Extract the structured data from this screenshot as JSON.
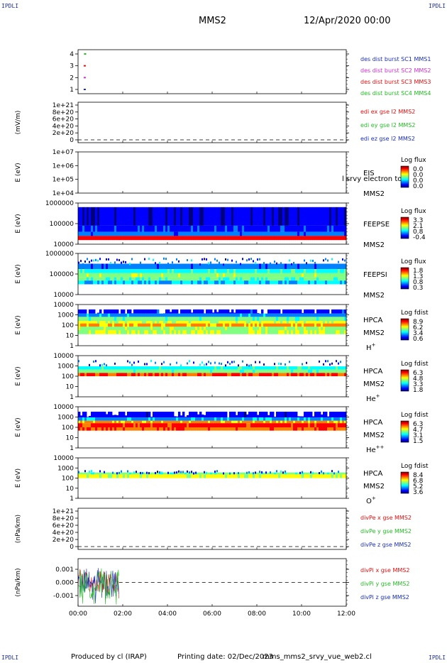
{
  "header": {
    "mission": "MMS2",
    "datetime": "12/Apr/2020 00:00",
    "corner_label": "IPDLI"
  },
  "footer": {
    "produced_by": "Produced by cl (IRAP)",
    "printing_date": "Printing date: 02/Dec/2023",
    "filename": "mms_mms2_srvy_vue_web2.cl"
  },
  "chart_data": {
    "type": "stacked-panels",
    "x_axis": {
      "range": [
        "00:00",
        "12:00"
      ],
      "tick_labels": [
        "00:00",
        "02:00",
        "04:00",
        "06:00",
        "08:00",
        "10:00",
        "12:00"
      ]
    },
    "panels": [
      {
        "id": "burst",
        "type": "scatter",
        "ylabel": "",
        "ytick_labels": [
          "4",
          "3",
          "2",
          "1"
        ],
        "legend": [
          {
            "name": "des dist burst SC1 MMS1",
            "color": "#1a2fb0"
          },
          {
            "name": "des dist burst SC2 MMS2",
            "color": "#cc33cc"
          },
          {
            "name": "des dist burst SC3 MMS3",
            "color": "#dd1111"
          },
          {
            "name": "des dist burst SC4 MMS4",
            "color": "#22bb22"
          }
        ],
        "points": [
          {
            "sc": 4,
            "time": "00:18"
          },
          {
            "sc": 3,
            "time": "00:17"
          },
          {
            "sc": 2,
            "time": "00:17"
          },
          {
            "sc": 1,
            "time": "00:17"
          }
        ]
      },
      {
        "id": "edi",
        "type": "line",
        "ylabel": "(mV/m)",
        "ytick_labels": [
          "1e+21",
          "8e+20",
          "6e+20",
          "4e+20",
          "2e+20",
          "0"
        ],
        "legend": [
          {
            "name": "edi ex gse l2 MMS2",
            "color": "#dd1111"
          },
          {
            "name": "edi ey gse l2 MMS2",
            "color": "#22bb22"
          },
          {
            "name": "edi ez gse l2 MMS2",
            "color": "#1a2fb0"
          }
        ]
      },
      {
        "id": "eis",
        "type": "heatmap",
        "ylabel": "E (eV)",
        "ytick_labels": [
          "1e+07",
          "1e+06",
          "1e+05",
          "1e+04"
        ],
        "right_labels": [
          "EIS",
          "MMS2"
        ],
        "overlay_text": "l srvy electron to",
        "colorbar": {
          "title": "Log flux",
          "ticks": [
            "0.0",
            "0.0",
            "0.0",
            "0.0"
          ]
        }
      },
      {
        "id": "feepse",
        "type": "heatmap",
        "ylabel": "E (eV)",
        "ytick_labels": [
          "1000000",
          "100000",
          "10000"
        ],
        "right_labels": [
          "FEEPSE",
          "MMS2"
        ],
        "colorbar": {
          "title": "Log flux",
          "ticks": [
            "3.3",
            "2.1",
            "0.8",
            "-0.4"
          ]
        }
      },
      {
        "id": "feepsi",
        "type": "heatmap",
        "ylabel": "E (eV)",
        "ytick_labels": [
          "1000000",
          "100000",
          "10000"
        ],
        "right_labels": [
          "FEEPSI",
          "MMS2"
        ],
        "colorbar": {
          "title": "Log flux",
          "ticks": [
            "1.8",
            "1.3",
            "0.8",
            "0.3"
          ]
        }
      },
      {
        "id": "hpca_h",
        "type": "heatmap",
        "ylabel": "E (eV)",
        "ytick_labels": [
          "10000",
          "1000",
          "100",
          "10",
          "1"
        ],
        "right_labels": [
          "HPCA",
          "MMS2"
        ],
        "species": "H",
        "species_charge": "+",
        "colorbar": {
          "title": "Log fdist",
          "ticks": [
            "8.9",
            "6.2",
            "3.4",
            "0.6"
          ]
        }
      },
      {
        "id": "hpca_he",
        "type": "heatmap",
        "ylabel": "E (eV)",
        "ytick_labels": [
          "10000",
          "1000",
          "100",
          "10",
          "1"
        ],
        "right_labels": [
          "HPCA",
          "MMS2"
        ],
        "species": "He",
        "species_charge": "+",
        "colorbar": {
          "title": "Log fdist",
          "ticks": [
            "6.3",
            "4.8",
            "3.3",
            "1.8"
          ]
        }
      },
      {
        "id": "hpca_hepp",
        "type": "heatmap",
        "ylabel": "E (eV)",
        "ytick_labels": [
          "10000",
          "1000",
          "100",
          "10",
          "1"
        ],
        "right_labels": [
          "HPCA",
          "MMS2"
        ],
        "species": "He",
        "species_charge": "++",
        "colorbar": {
          "title": "Log fdist",
          "ticks": [
            "6.3",
            "4.7",
            "3.1",
            "1.5"
          ]
        }
      },
      {
        "id": "hpca_o",
        "type": "heatmap",
        "ylabel": "E (eV)",
        "ytick_labels": [
          "10000",
          "1000",
          "100",
          "10",
          "1"
        ],
        "right_labels": [
          "HPCA",
          "MMS2"
        ],
        "species": "O",
        "species_charge": "+",
        "colorbar": {
          "title": "Log fdist",
          "ticks": [
            "8.4",
            "6.8",
            "5.2",
            "3.6"
          ]
        }
      },
      {
        "id": "divpe",
        "type": "line",
        "ylabel": "(nPa/km)",
        "ytick_labels": [
          "1e+21",
          "8e+20",
          "6e+20",
          "4e+20",
          "2e+20",
          "0"
        ],
        "legend": [
          {
            "name": "divPe x gse MMS2",
            "color": "#dd1111"
          },
          {
            "name": "divPe y gse MMS2",
            "color": "#22bb22"
          },
          {
            "name": "divPe z gse MMS2",
            "color": "#1a2fb0"
          }
        ]
      },
      {
        "id": "divpi",
        "type": "line",
        "ylabel": "(nPa/km)",
        "ytick_labels": [
          "0.001",
          "0.000",
          "-0.001"
        ],
        "ylim": [
          -0.0015,
          0.0015
        ],
        "data_end": "01:50",
        "legend": [
          {
            "name": "divPi x gse MMS2",
            "color": "#dd1111"
          },
          {
            "name": "divPi y gse MMS2",
            "color": "#22bb22"
          },
          {
            "name": "divPi z gse MMS2",
            "color": "#1a2fb0"
          }
        ]
      }
    ]
  }
}
